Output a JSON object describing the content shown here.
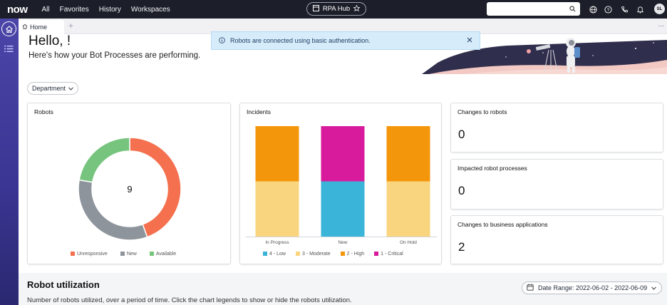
{
  "topnav": {
    "logo": "now",
    "items": [
      "All",
      "Favorites",
      "History",
      "Workspaces"
    ],
    "hub_label": "RPA Hub",
    "search_placeholder": "",
    "avatar_initials": "SL"
  },
  "tabs": {
    "home_label": "Home",
    "more_label": "..."
  },
  "banner": {
    "message": "Robots are connected using basic authentication."
  },
  "hero": {
    "greeting": "Hello, !",
    "subtitle": "Here's how your Bot Processes are performing."
  },
  "filter": {
    "department_label": "Department"
  },
  "robots_card": {
    "title": "Robots",
    "center_value": "9",
    "chart_data": {
      "type": "pie",
      "variant": "donut",
      "categories": [
        "Unresponsive",
        "New",
        "Available"
      ],
      "values": [
        4,
        3,
        2
      ],
      "colors": [
        "#f4704e",
        "#8e949c",
        "#77c47e"
      ],
      "legend_placement": "bottom"
    }
  },
  "incidents_card": {
    "title": "Incidents",
    "chart_data": {
      "type": "bar",
      "stacked": true,
      "categories": [
        "In Progress",
        "New",
        "On Hold"
      ],
      "series": [
        {
          "name": "4 - Low",
          "values": [
            0,
            1,
            0
          ],
          "color": "#3ab4d8"
        },
        {
          "name": "3 - Moderate",
          "values": [
            1,
            0,
            1
          ],
          "color": "#f8d57e"
        },
        {
          "name": "2 - High",
          "values": [
            1,
            0,
            1
          ],
          "color": "#f4960b"
        },
        {
          "name": "1 - Critical",
          "values": [
            0,
            1,
            0
          ],
          "color": "#d81b9c"
        }
      ],
      "legend_placement": "bottom",
      "grid": false
    }
  },
  "metrics": [
    {
      "title": "Changes to robots",
      "value": "0"
    },
    {
      "title": "Impacted robot processes",
      "value": "0"
    },
    {
      "title": "Changes to business applications",
      "value": "2"
    }
  ],
  "utilization": {
    "title": "Robot utilization",
    "description": "Number of robots utilized, over a period of time. Click the chart legends to show or hide the robots utilization.",
    "date_range": "Date Range: 2022-06-02 - 2022-06-09"
  }
}
